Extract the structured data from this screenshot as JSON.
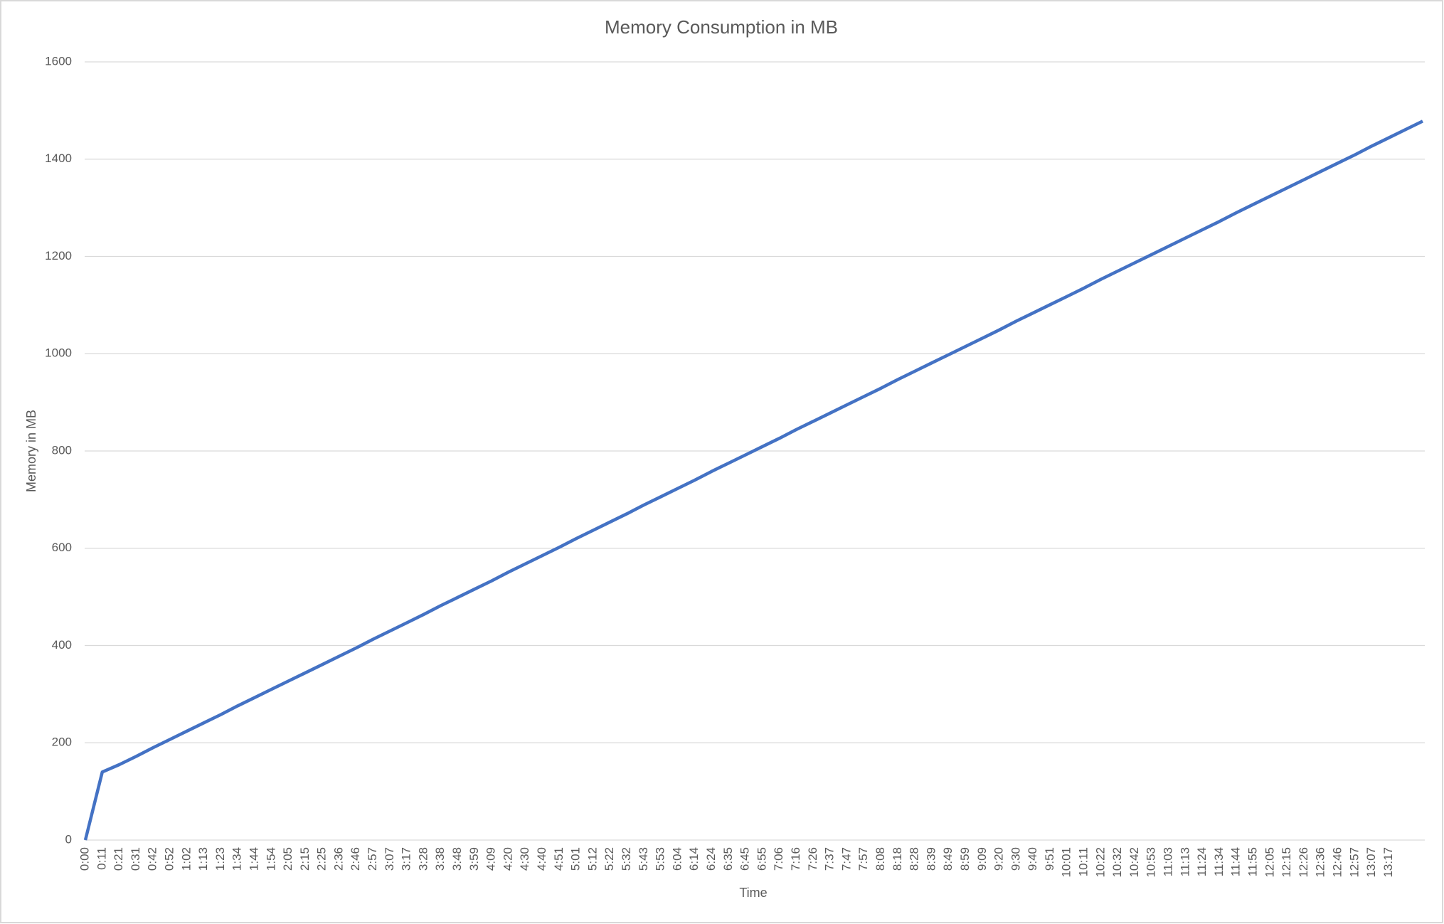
{
  "chart_data": {
    "type": "line",
    "title": "Memory Consumption in MB",
    "x_label": "Time",
    "y_label": "Memory in MB",
    "categories": [
      "0:00",
      "0:11",
      "0:21",
      "0:31",
      "0:42",
      "0:52",
      "1:02",
      "1:13",
      "1:23",
      "1:34",
      "1:44",
      "1:54",
      "2:05",
      "2:15",
      "2:25",
      "2:36",
      "2:46",
      "2:57",
      "3:07",
      "3:17",
      "3:28",
      "3:38",
      "3:48",
      "3:59",
      "4:09",
      "4:20",
      "4:30",
      "4:40",
      "4:51",
      "5:01",
      "5:12",
      "5:22",
      "5:32",
      "5:43",
      "5:53",
      "6:04",
      "6:14",
      "6:24",
      "6:35",
      "6:45",
      "6:55",
      "7:06",
      "7:16",
      "7:26",
      "7:37",
      "7:47",
      "7:57",
      "8:08",
      "8:18",
      "8:28",
      "8:39",
      "8:49",
      "8:59",
      "9:09",
      "9:20",
      "9:30",
      "9:40",
      "9:51",
      "10:01",
      "10:11",
      "10:22",
      "10:32",
      "10:42",
      "10:53",
      "11:03",
      "11:13",
      "11:24",
      "11:34",
      "11:44",
      "11:55",
      "12:05",
      "12:15",
      "12:26",
      "12:36",
      "12:46",
      "12:57",
      "13:07",
      "13:17",
      null,
      null
    ],
    "series": [
      {
        "name": "Memory",
        "color": "#4472c4",
        "values": [
          0,
          140,
          155,
          172,
          190,
          207,
          224,
          241,
          258,
          276,
          293,
          310,
          327,
          344,
          361,
          378,
          395,
          413,
          430,
          447,
          464,
          482,
          499,
          516,
          533,
          551,
          568,
          585,
          602,
          620,
          637,
          654,
          671,
          689,
          706,
          723,
          740,
          758,
          775,
          792,
          809,
          826,
          844,
          861,
          878,
          895,
          912,
          929,
          947,
          964,
          981,
          998,
          1015,
          1032,
          1049,
          1067,
          1084,
          1101,
          1118,
          1135,
          1153,
          1170,
          1187,
          1204,
          1221,
          1238,
          1255,
          1272,
          1290,
          1307,
          1324,
          1341,
          1358,
          1375,
          1392,
          1409,
          1427,
          1444,
          1461,
          1478
        ]
      }
    ],
    "ylim": [
      0,
      1600
    ],
    "yticks": [
      0,
      200,
      400,
      600,
      800,
      1000,
      1200,
      1400,
      1600
    ],
    "grid": true
  }
}
